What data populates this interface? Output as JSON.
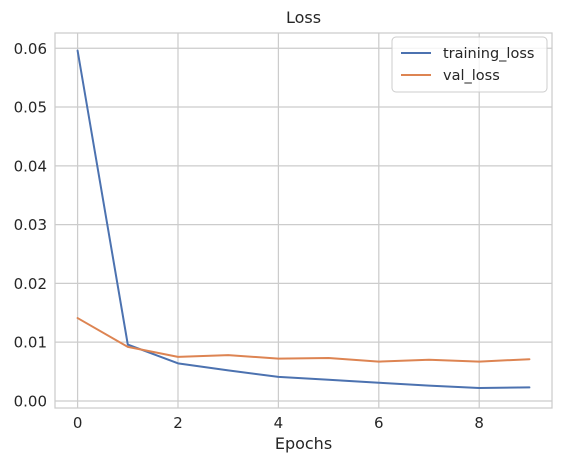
{
  "chart_data": {
    "type": "line",
    "title": "Loss",
    "xlabel": "Epochs",
    "ylabel": "",
    "x": [
      0,
      1,
      2,
      3,
      4,
      5,
      6,
      7,
      8,
      9
    ],
    "xlim": [
      -0.45,
      9.45
    ],
    "ylim": [
      -0.0012,
      0.0626
    ],
    "xticks": [
      0,
      2,
      4,
      6,
      8
    ],
    "xtick_labels": [
      "0",
      "2",
      "4",
      "6",
      "8"
    ],
    "yticks": [
      0.0,
      0.01,
      0.02,
      0.03,
      0.04,
      0.05,
      0.06
    ],
    "ytick_labels": [
      "0.00",
      "0.01",
      "0.02",
      "0.03",
      "0.04",
      "0.05",
      "0.06"
    ],
    "grid": true,
    "legend_position": "top-right",
    "series": [
      {
        "name": "training_loss",
        "color": "#4c72b0",
        "values": [
          0.0596,
          0.0096,
          0.0064,
          0.0052,
          0.0041,
          0.0036,
          0.0031,
          0.0026,
          0.0022,
          0.0023
        ]
      },
      {
        "name": "val_loss",
        "color": "#dd8452",
        "values": [
          0.0141,
          0.0092,
          0.0075,
          0.0078,
          0.0072,
          0.0073,
          0.0067,
          0.007,
          0.0067,
          0.0071
        ]
      }
    ]
  }
}
